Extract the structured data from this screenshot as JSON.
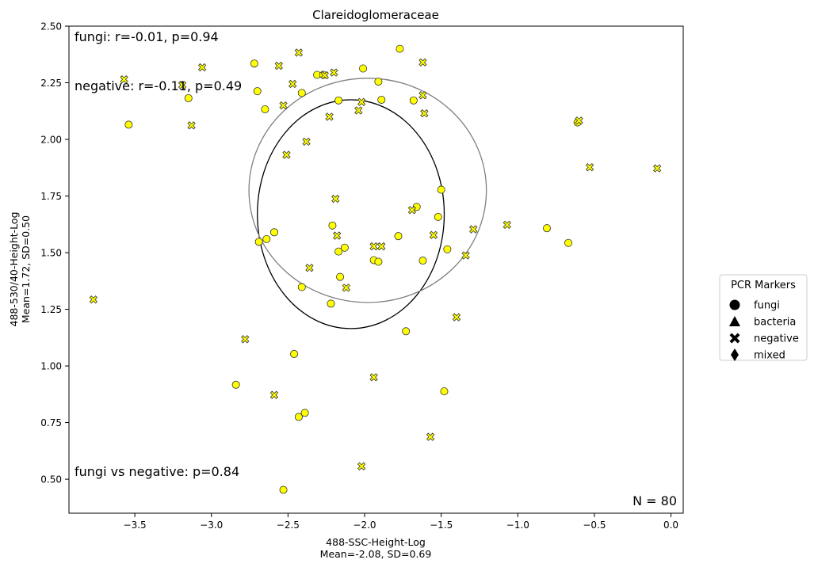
{
  "chart_data": {
    "type": "scatter",
    "title": "Clareidoglomeraceae",
    "xlabel_line1": "488-SSC-Height-Log",
    "xlabel_line2": "Mean=-2.08, SD=0.69",
    "ylabel_line1": "488-530/40-Height-Log",
    "ylabel_line2": "Mean=1.72, SD=0.50",
    "xlim": [
      -3.93,
      0.08
    ],
    "ylim": [
      0.35,
      2.5
    ],
    "xticks": [
      -3.5,
      -3.0,
      -2.5,
      -2.0,
      -1.5,
      -1.0,
      -0.5,
      0.0
    ],
    "xtick_labels": [
      "−3.5",
      "−3.0",
      "−2.5",
      "−2.0",
      "−1.5",
      "−1.0",
      "−0.5",
      "0.0"
    ],
    "yticks": [
      0.5,
      0.75,
      1.0,
      1.25,
      1.5,
      1.75,
      2.0,
      2.25,
      2.5
    ],
    "ytick_labels": [
      "0.50",
      "0.75",
      "1.00",
      "1.25",
      "1.50",
      "1.75",
      "2.00",
      "2.25",
      "2.50"
    ],
    "marker_color": "#ffff00",
    "marker_edge_color": "#333333",
    "grid": false,
    "annotations": {
      "fungi_stat": "fungi: r=-0.01, p=0.94",
      "negative_stat": "negative: r=-0.11, p=0.49",
      "comparison": "fungi vs negative: p=0.84",
      "n_label": "N = 80"
    },
    "legend": {
      "title": "PCR Markers",
      "position": "right-outside",
      "items": [
        {
          "label": "fungi",
          "marker": "circle"
        },
        {
          "label": "bacteria",
          "marker": "triangle"
        },
        {
          "label": "negative",
          "marker": "x"
        },
        {
          "label": "mixed",
          "marker": "diamond"
        }
      ]
    },
    "ellipses": [
      {
        "group": "fungi",
        "color": "#000000",
        "cx": -2.09,
        "cy": 1.67,
        "rx": 0.61,
        "ry": 0.505
      },
      {
        "group": "negative",
        "color": "#808080",
        "cx": -1.98,
        "cy": 1.775,
        "rx": 0.775,
        "ry": 0.495
      }
    ],
    "series": [
      {
        "name": "fungi",
        "marker": "circle",
        "points": [
          [
            -1.77,
            2.4
          ],
          [
            -2.72,
            2.335
          ],
          [
            -2.01,
            2.313
          ],
          [
            -2.31,
            2.285
          ],
          [
            -2.27,
            2.285
          ],
          [
            -1.91,
            2.255
          ],
          [
            -2.7,
            2.213
          ],
          [
            -2.41,
            2.205
          ],
          [
            -3.15,
            2.182
          ],
          [
            -2.17,
            2.172
          ],
          [
            -1.89,
            2.175
          ],
          [
            -1.68,
            2.172
          ],
          [
            -2.65,
            2.133
          ],
          [
            -3.54,
            2.065
          ],
          [
            -0.61,
            2.075
          ],
          [
            -1.5,
            1.778
          ],
          [
            -1.66,
            1.702
          ],
          [
            -1.52,
            1.658
          ],
          [
            -2.21,
            1.62
          ],
          [
            -0.81,
            1.608
          ],
          [
            -2.59,
            1.59
          ],
          [
            -1.78,
            1.573
          ],
          [
            -2.64,
            1.56
          ],
          [
            -2.69,
            1.548
          ],
          [
            -0.67,
            1.543
          ],
          [
            -2.13,
            1.522
          ],
          [
            -1.46,
            1.515
          ],
          [
            -2.17,
            1.505
          ],
          [
            -1.94,
            1.467
          ],
          [
            -1.62,
            1.465
          ],
          [
            -1.91,
            1.46
          ],
          [
            -2.16,
            1.393
          ],
          [
            -2.41,
            1.348
          ],
          [
            -2.22,
            1.275
          ],
          [
            -1.73,
            1.153
          ],
          [
            -2.46,
            1.053
          ],
          [
            -2.84,
            0.917
          ],
          [
            -1.48,
            0.888
          ],
          [
            -2.39,
            0.793
          ],
          [
            -2.43,
            0.775
          ],
          [
            -2.53,
            0.453
          ]
        ]
      },
      {
        "name": "negative",
        "marker": "x",
        "points": [
          [
            -2.43,
            2.383
          ],
          [
            -1.62,
            2.34
          ],
          [
            -2.56,
            2.325
          ],
          [
            -3.06,
            2.318
          ],
          [
            -2.26,
            2.283
          ],
          [
            -2.2,
            2.295
          ],
          [
            -3.57,
            2.265
          ],
          [
            -2.47,
            2.245
          ],
          [
            -3.19,
            2.24
          ],
          [
            -1.62,
            2.195
          ],
          [
            -2.02,
            2.165
          ],
          [
            -2.53,
            2.15
          ],
          [
            -2.04,
            2.128
          ],
          [
            -1.61,
            2.115
          ],
          [
            -2.23,
            2.1
          ],
          [
            -0.6,
            2.083
          ],
          [
            -3.13,
            2.062
          ],
          [
            -2.38,
            1.99
          ],
          [
            -2.51,
            1.932
          ],
          [
            -0.53,
            1.877
          ],
          [
            -0.09,
            1.872
          ],
          [
            -2.19,
            1.738
          ],
          [
            -1.69,
            1.688
          ],
          [
            -1.07,
            1.623
          ],
          [
            -1.29,
            1.603
          ],
          [
            -2.18,
            1.575
          ],
          [
            -1.55,
            1.578
          ],
          [
            -1.94,
            1.528
          ],
          [
            -1.89,
            1.528
          ],
          [
            -1.34,
            1.488
          ],
          [
            -2.36,
            1.433
          ],
          [
            -2.12,
            1.345
          ],
          [
            -3.77,
            1.293
          ],
          [
            -1.4,
            1.215
          ],
          [
            -2.78,
            1.118
          ],
          [
            -1.94,
            0.95
          ],
          [
            -2.59,
            0.872
          ],
          [
            -1.57,
            0.687
          ],
          [
            -2.02,
            0.557
          ]
        ]
      }
    ]
  }
}
